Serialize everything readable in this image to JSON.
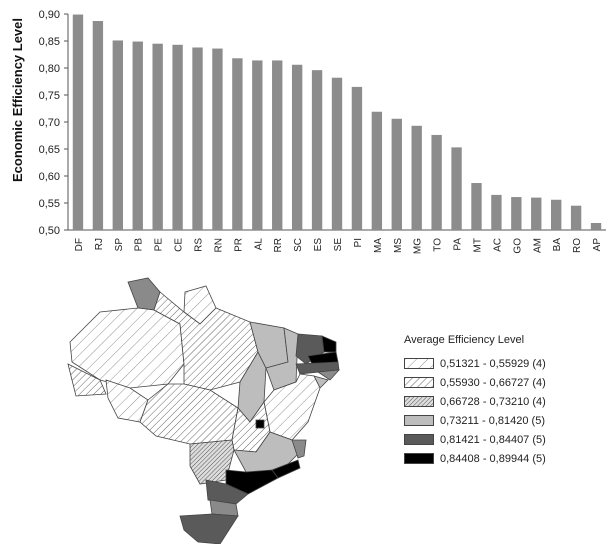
{
  "chart_data": [
    {
      "type": "bar",
      "ylabel": "Economic Efficiency Level",
      "ylim": [
        0.5,
        0.9
      ],
      "yticks": [
        "0,50",
        "0,55",
        "0,60",
        "0,65",
        "0,70",
        "0,75",
        "0,80",
        "0,85",
        "0,90"
      ],
      "categories": [
        "DF",
        "RJ",
        "SP",
        "PB",
        "PE",
        "CE",
        "RS",
        "RN",
        "PR",
        "AL",
        "RR",
        "SC",
        "ES",
        "SE",
        "PI",
        "MA",
        "MS",
        "MG",
        "TO",
        "PA",
        "MT",
        "AC",
        "GO",
        "AM",
        "BA",
        "RO",
        "AP"
      ],
      "values": [
        0.899,
        0.887,
        0.851,
        0.849,
        0.845,
        0.843,
        0.838,
        0.836,
        0.818,
        0.814,
        0.814,
        0.806,
        0.796,
        0.782,
        0.765,
        0.719,
        0.706,
        0.693,
        0.676,
        0.653,
        0.587,
        0.565,
        0.561,
        0.56,
        0.556,
        0.545,
        0.513
      ],
      "bar_color": "#8c8c8c"
    },
    {
      "type": "choropleth-map",
      "legend_title": "Average Efficiency Level",
      "legend": [
        {
          "label": "0,51321 - 0,55929 (4)",
          "pattern": "sparse-hatch"
        },
        {
          "label": "0,55930 - 0,66727 (4)",
          "pattern": "hatch"
        },
        {
          "label": "0,66728 - 0,73210 (4)",
          "pattern": "dense-hatch"
        },
        {
          "label": "0,73211 - 0,81420 (5)",
          "pattern": "light-gray"
        },
        {
          "label": "0,81421 - 0,84407 (5)",
          "pattern": "dark-gray"
        },
        {
          "label": "0,84408 - 0,89944 (5)",
          "pattern": "black"
        }
      ],
      "pattern_colors": {
        "light-gray": "#bdbdbd",
        "dark-gray": "#5a5a5a",
        "black": "#000000"
      }
    }
  ]
}
